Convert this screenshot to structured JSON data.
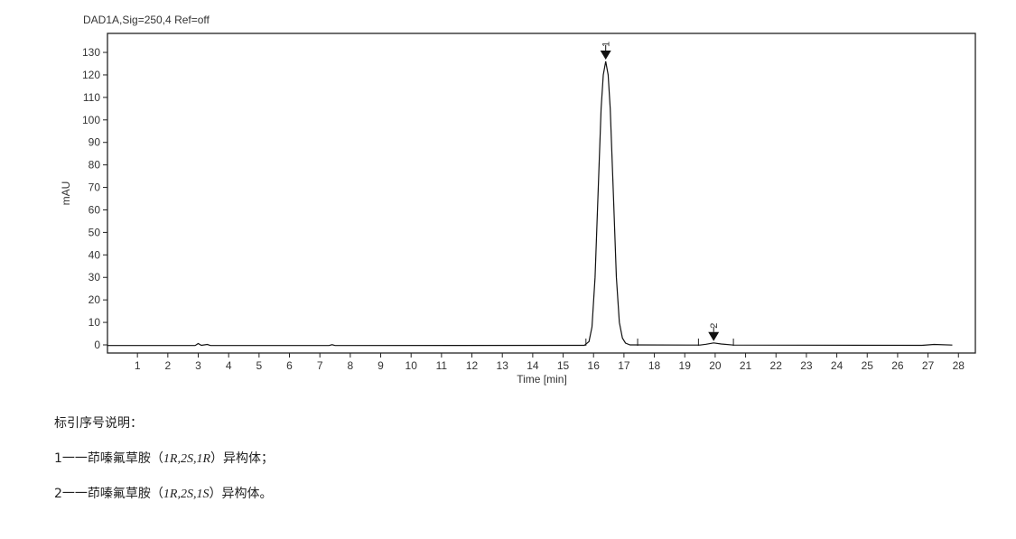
{
  "chart_data": {
    "type": "line",
    "title": "DAD1A,Sig=250,4  Ref=off",
    "xlabel": "Time [min]",
    "ylabel": "mAU",
    "xlim": [
      0,
      28.5
    ],
    "ylim": [
      -3,
      135
    ],
    "xticks": [
      1,
      2,
      3,
      4,
      5,
      6,
      7,
      8,
      9,
      10,
      11,
      12,
      13,
      14,
      15,
      16,
      17,
      18,
      19,
      20,
      21,
      22,
      23,
      24,
      25,
      26,
      27,
      28
    ],
    "yticks": [
      0,
      10,
      20,
      30,
      40,
      50,
      60,
      70,
      80,
      90,
      100,
      110,
      120,
      130
    ],
    "grid": false,
    "series": [
      {
        "x": [
          0,
          2.9,
          3.0,
          3.1,
          3.3,
          3.4,
          7.3,
          7.4,
          7.5,
          15.7,
          15.85,
          15.95,
          16.05,
          16.15,
          16.25,
          16.32,
          16.4,
          16.48,
          16.55,
          16.65,
          16.75,
          16.85,
          16.95,
          17.05,
          17.2,
          19.5,
          19.7,
          19.95,
          20.2,
          20.6,
          26.8,
          27.2,
          27.8
        ],
        "y": [
          -0.3,
          -0.3,
          0.6,
          -0.2,
          0.2,
          -0.3,
          -0.3,
          0.1,
          -0.3,
          -0.2,
          1.5,
          8,
          30,
          68,
          105,
          120,
          126,
          120,
          105,
          68,
          30,
          10,
          3,
          0.8,
          0,
          -0.1,
          0.3,
          0.9,
          0.4,
          -0.1,
          -0.2,
          0.2,
          -0.1
        ]
      }
    ],
    "peaks": [
      {
        "label": "1",
        "time": 16.4,
        "height": 126
      },
      {
        "label": "2",
        "time": 19.95,
        "height": 0.9
      }
    ],
    "baseline_marks": [
      15.75,
      17.45,
      19.45,
      20.6
    ]
  },
  "legend": {
    "heading": "标引序号说明：",
    "items": [
      {
        "prefix": "1一一茚嗪氟草胺（",
        "config": "1R,2S,1R",
        "suffix": "）异构体；"
      },
      {
        "prefix": "2一一茚嗪氟草胺（",
        "config": "1R,2S,1S",
        "suffix": "）异构体。"
      }
    ]
  }
}
